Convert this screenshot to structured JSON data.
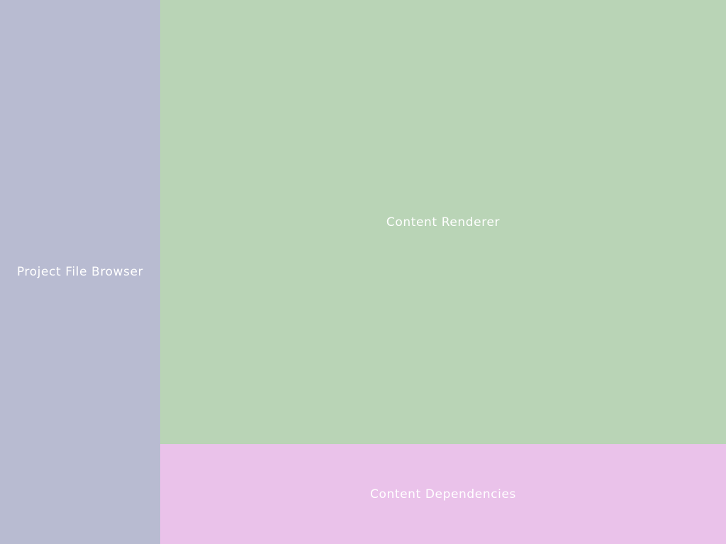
{
  "panels": {
    "file_browser": {
      "label": "Project File Browser",
      "color": "#b8bbd1"
    },
    "renderer": {
      "label": "Content Renderer",
      "color": "#b9d4b6"
    },
    "dependencies": {
      "label": "Content Dependencies",
      "color": "#eac2ea"
    }
  }
}
